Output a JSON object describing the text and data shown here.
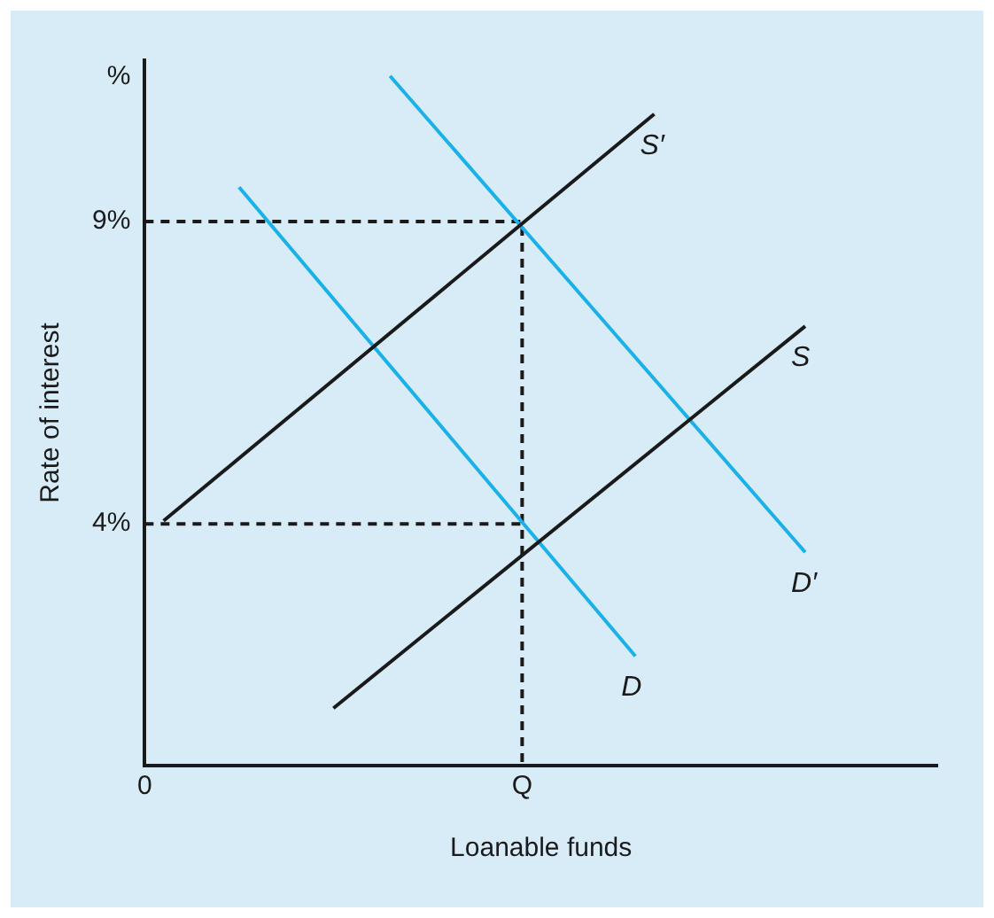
{
  "chart_data": {
    "type": "line",
    "xlabel": "Loanable funds",
    "ylabel": "Rate of interest",
    "categories": [
      "0",
      null,
      null,
      null,
      null,
      null,
      null,
      null,
      null,
      null,
      null,
      null,
      null,
      null,
      null,
      null,
      null,
      null,
      null,
      null,
      "Q",
      null,
      null,
      null,
      null,
      null,
      null,
      null,
      null,
      null,
      null,
      null,
      null,
      null,
      null,
      null,
      null,
      null,
      null,
      null,
      null,
      null,
      null
    ],
    "ylim": [
      0,
      11.67
    ],
    "yticks": [
      {
        "value": 4,
        "label": "4%"
      },
      {
        "value": 9,
        "label": "9%"
      },
      {
        "value": 11.4,
        "label": "%"
      }
    ],
    "grid": false,
    "legend": false,
    "marker": "none",
    "series": [
      {
        "name": "S′",
        "color": "#1a1a1a",
        "values": [
          null,
          4.05,
          null,
          null,
          null,
          null,
          null,
          null,
          null,
          null,
          null,
          null,
          null,
          null,
          null,
          null,
          null,
          null,
          null,
          null,
          null,
          null,
          null,
          null,
          null,
          null,
          null,
          10.78,
          null,
          null,
          null,
          null,
          null,
          null,
          null,
          null,
          null,
          null,
          null,
          null,
          null,
          null,
          null
        ]
      },
      {
        "name": "S",
        "color": "#1a1a1a",
        "values": [
          null,
          null,
          null,
          null,
          null,
          null,
          null,
          null,
          null,
          null,
          0.95,
          null,
          null,
          null,
          null,
          null,
          null,
          null,
          null,
          null,
          null,
          null,
          null,
          null,
          null,
          null,
          null,
          null,
          null,
          null,
          null,
          null,
          null,
          null,
          null,
          7.27,
          null,
          null,
          null,
          null,
          null,
          null,
          null
        ]
      },
      {
        "name": "D",
        "color": "#1ab0e8",
        "values": [
          null,
          null,
          null,
          null,
          null,
          9.57,
          null,
          null,
          null,
          null,
          null,
          null,
          null,
          null,
          null,
          null,
          null,
          null,
          null,
          null,
          null,
          null,
          null,
          null,
          null,
          null,
          1.81,
          null,
          null,
          null,
          null,
          null,
          null,
          null,
          null,
          null,
          null,
          null,
          null,
          null,
          null,
          null,
          null
        ]
      },
      {
        "name": "D′",
        "color": "#1ab0e8",
        "values": [
          null,
          null,
          null,
          null,
          null,
          null,
          null,
          null,
          null,
          null,
          null,
          null,
          null,
          11.41,
          null,
          null,
          null,
          null,
          null,
          null,
          null,
          null,
          null,
          null,
          null,
          null,
          null,
          null,
          null,
          null,
          null,
          null,
          null,
          null,
          null,
          3.53,
          null,
          null,
          null,
          null,
          null,
          null,
          null
        ]
      },
      {
        "color": "#1a1a1a",
        "line_style": "dashed",
        "x": [
          "0",
          "Q",
          "Q"
        ],
        "values": [
          9,
          9,
          0
        ]
      },
      {
        "color": "#1a1a1a",
        "line_style": "dashed",
        "x": [
          "0",
          "Q"
        ],
        "values": [
          4,
          4
        ]
      }
    ]
  }
}
